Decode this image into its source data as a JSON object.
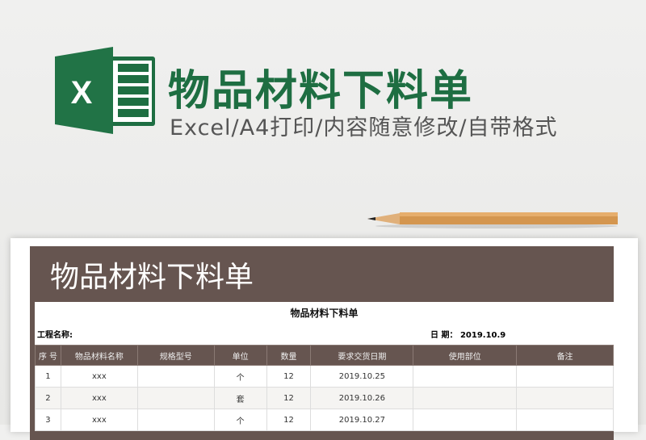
{
  "banner": {
    "title": "物品材料下料单",
    "subtitle": "Excel/A4打印/内容随意修改/自带格式"
  },
  "sheet": {
    "header_title": "物品材料下料单",
    "form_title": "物品材料下料单",
    "project_label": "工程名称:",
    "date_label": "日 期： 2019.10.9",
    "columns": [
      "序 号",
      "物品材料名称",
      "规格型号",
      "单位",
      "数量",
      "要求交货日期",
      "使用部位",
      "备注"
    ],
    "rows": [
      [
        "1",
        "xxx",
        "",
        "个",
        "12",
        "2019.10.25",
        "",
        ""
      ],
      [
        "2",
        "xxx",
        "",
        "套",
        "12",
        "2019.10.26",
        "",
        ""
      ],
      [
        "3",
        "xxx",
        "",
        "个",
        "12",
        "2019.10.27",
        "",
        ""
      ]
    ]
  },
  "colors": {
    "brand_green": "#1e6e42",
    "header_brown": "#665550"
  },
  "icons": {
    "logo": "excel-logo-icon",
    "decor": "pencil-icon"
  }
}
